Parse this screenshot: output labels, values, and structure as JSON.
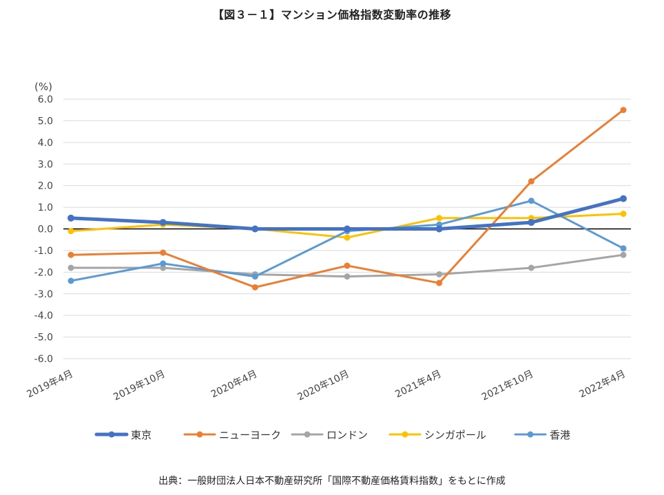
{
  "title": "【図３－１】マンション価格指数変動率の推移",
  "source": "出典：一般財団法人日本不動産研究所「国際不動産価格賃料指数」をもとに作成",
  "chart_data": {
    "type": "line",
    "title": "【図３－１】マンション価格指数変動率の推移",
    "ylabel": "(%)",
    "xlabel": "",
    "ylim": [
      -6.0,
      6.0
    ],
    "yticks": [
      "6.0",
      "5.0",
      "4.0",
      "3.0",
      "2.0",
      "1.0",
      "0.0",
      "-1.0",
      "-2.0",
      "-3.0",
      "-4.0",
      "-5.0",
      "-6.0"
    ],
    "grid": true,
    "legend_position": "bottom",
    "categories": [
      "2019年4月",
      "2019年10月",
      "2020年4月",
      "2020年10月",
      "2021年4月",
      "2021年10月",
      "2022年4月"
    ],
    "series": [
      {
        "name": "東京",
        "color": "#4472C4",
        "values": [
          0.5,
          0.3,
          0.0,
          0.0,
          0.0,
          0.3,
          1.4
        ],
        "thick": true
      },
      {
        "name": "ニューヨーク",
        "color": "#ED7D31",
        "values": [
          -1.2,
          -1.1,
          -2.7,
          -1.7,
          -2.5,
          2.2,
          5.5
        ]
      },
      {
        "name": "ロンドン",
        "color": "#A5A5A5",
        "values": [
          -1.8,
          -1.8,
          -2.1,
          -2.2,
          -2.1,
          -1.8,
          -1.2
        ]
      },
      {
        "name": "シンガポール",
        "color": "#FFC000",
        "values": [
          -0.1,
          0.2,
          0.0,
          -0.4,
          0.5,
          0.5,
          0.7
        ]
      },
      {
        "name": "香港",
        "color": "#5B9BD5",
        "values": [
          -2.4,
          -1.6,
          -2.2,
          -0.1,
          0.2,
          1.3,
          -0.9
        ]
      }
    ]
  }
}
